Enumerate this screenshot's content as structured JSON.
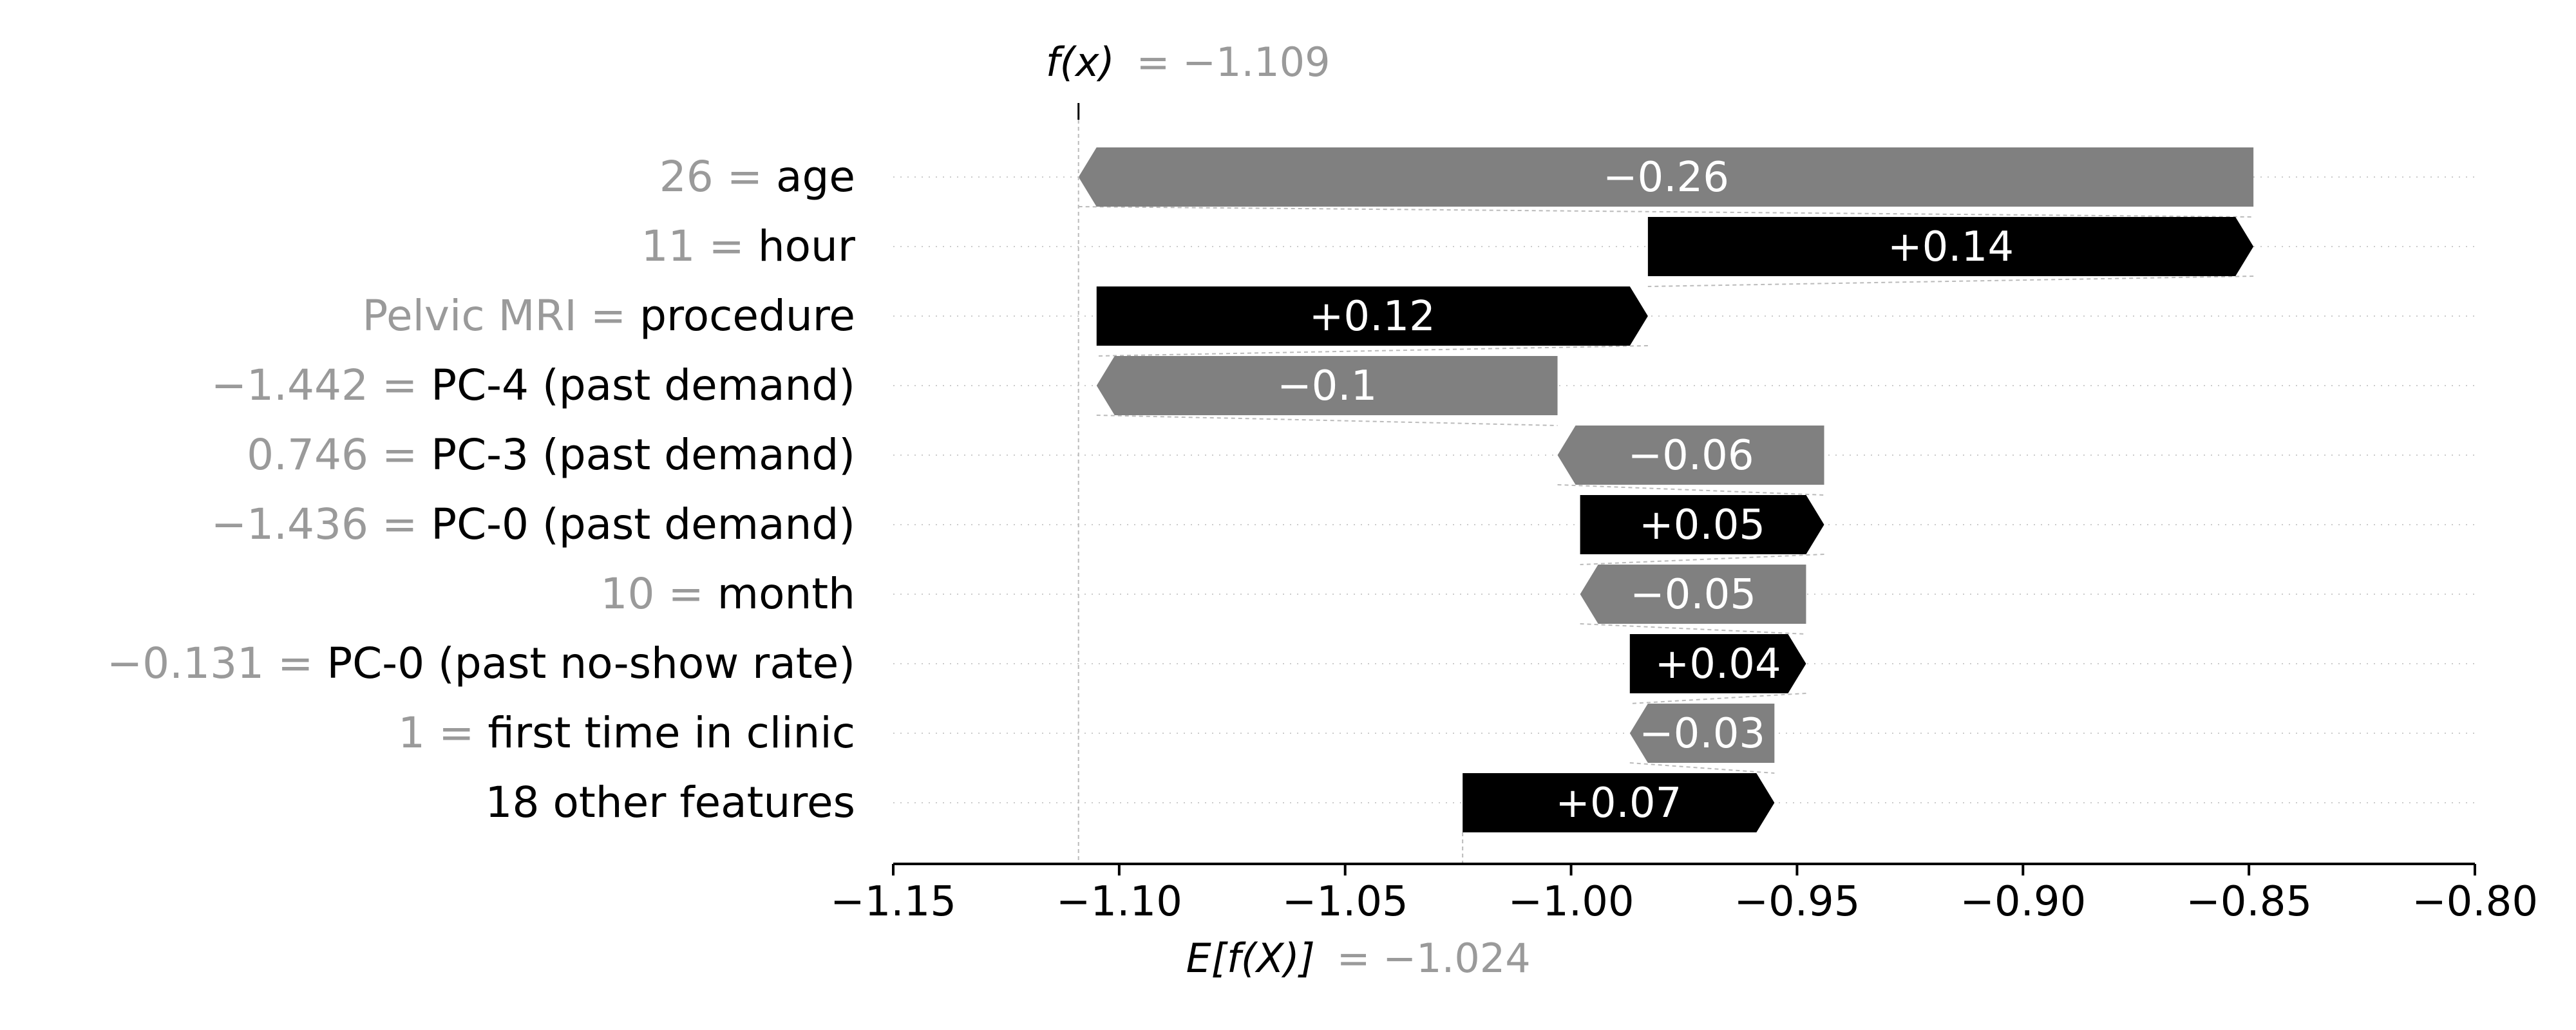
{
  "chart_data": {
    "type": "waterfall",
    "fx": {
      "label": "f(x)",
      "value_text": "= −1.109",
      "value": -1.109
    },
    "expected": {
      "label": "E[f(X)]",
      "value_text": "= −1.024",
      "value": -1.024
    },
    "xlim": [
      -1.15,
      -0.8
    ],
    "xticks": [
      -1.15,
      -1.1,
      -1.05,
      -1.0,
      -0.95,
      -0.9,
      -0.85,
      -0.8
    ],
    "xtick_labels": [
      "−1.15",
      "−1.10",
      "−1.05",
      "−1.00",
      "−0.95",
      "−0.90",
      "−0.85",
      "−0.80"
    ],
    "features": [
      {
        "value_text": "26 =",
        "name": "age",
        "start": -0.849,
        "end": -1.109,
        "label": "−0.26"
      },
      {
        "value_text": "11 =",
        "name": "hour",
        "start": -0.983,
        "end": -0.849,
        "label": "+0.14"
      },
      {
        "value_text": "Pelvic MRI =",
        "name": "procedure",
        "start": -1.105,
        "end": -0.983,
        "label": "+0.12"
      },
      {
        "value_text": "−1.442 =",
        "name": "PC-4 (past demand)",
        "start": -1.003,
        "end": -1.105,
        "label": "−0.1"
      },
      {
        "value_text": "0.746 =",
        "name": "PC-3 (past demand)",
        "start": -0.944,
        "end": -1.003,
        "label": "−0.06"
      },
      {
        "value_text": "−1.436 =",
        "name": "PC-0 (past demand)",
        "start": -0.998,
        "end": -0.944,
        "label": "+0.05"
      },
      {
        "value_text": "10 =",
        "name": "month",
        "start": -0.948,
        "end": -0.998,
        "label": "−0.05"
      },
      {
        "value_text": "−0.131 =",
        "name": "PC-0 (past no-show rate)",
        "start": -0.987,
        "end": -0.948,
        "label": "+0.04"
      },
      {
        "value_text": "1 =",
        "name": "first time in clinic",
        "start": -0.955,
        "end": -0.987,
        "label": "−0.03"
      },
      {
        "value_text": "",
        "name": "18 other features",
        "start": -1.024,
        "end": -0.955,
        "label": "+0.07"
      }
    ],
    "colors": {
      "positive": "#000000",
      "negative": "#808080",
      "value_text": "#9a9a9a",
      "text": "#000000"
    },
    "grid": "horizontal dotted row guides"
  }
}
